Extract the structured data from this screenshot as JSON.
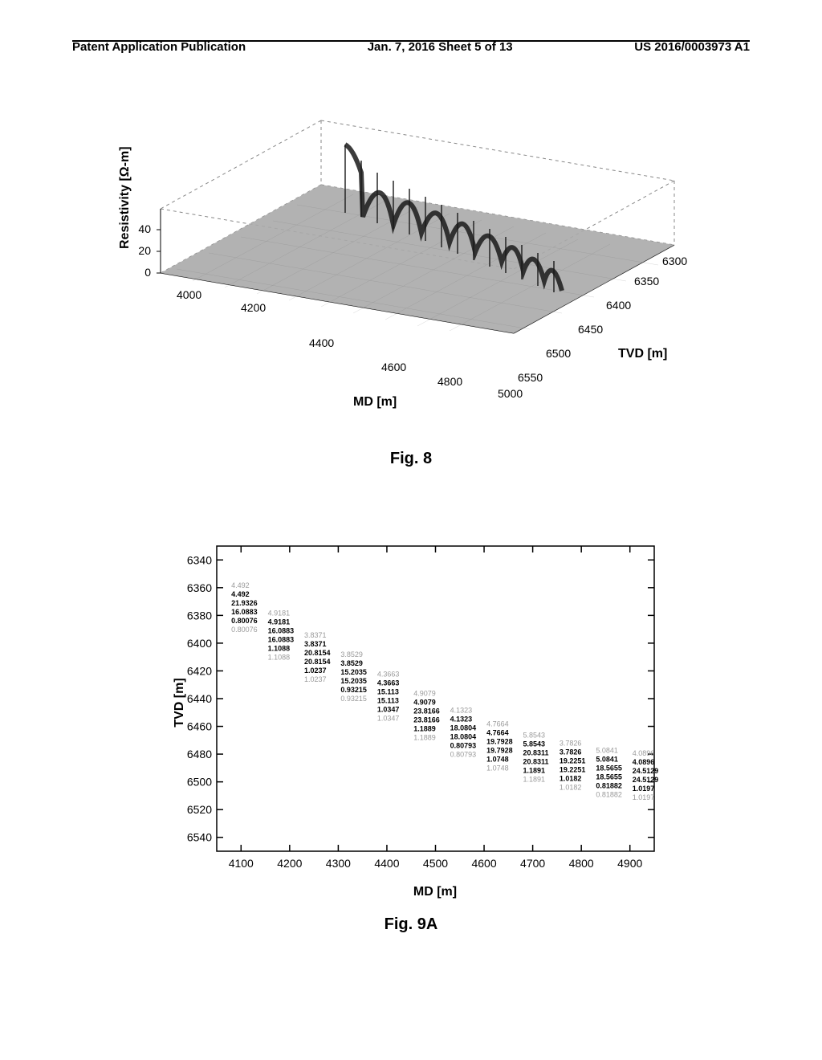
{
  "header": {
    "left": "Patent Application Publication",
    "center": "Jan. 7, 2016  Sheet 5 of 13",
    "right": "US 2016/0003973 A1"
  },
  "fig8": {
    "caption": "Fig. 8",
    "z_label": "Resistivity [Ω-m]",
    "x_label": "MD [m]",
    "y_label": "TVD [m]",
    "z_ticks": [
      0,
      20,
      40
    ],
    "x_ticks": [
      4000,
      4200,
      4400,
      4600,
      4800,
      5000
    ],
    "y_ticks": [
      6300,
      6350,
      6400,
      6450,
      6500,
      6550
    ],
    "surface_color": "#999999",
    "ridge_color": "#1a1a1a",
    "grid_color": "#888888",
    "background": "#ffffff"
  },
  "fig9a": {
    "caption": "Fig. 9A",
    "y_label": "TVD [m]",
    "x_label": "MD [m]",
    "y_ticks": [
      6340,
      6360,
      6380,
      6400,
      6420,
      6440,
      6460,
      6480,
      6500,
      6520,
      6540
    ],
    "x_ticks": [
      4100,
      4200,
      4300,
      4400,
      4500,
      4600,
      4700,
      4800,
      4900
    ],
    "background": "#ffffff",
    "text_color": "#000000",
    "gray_color": "#9a9a9a",
    "data_points": [
      {
        "x": 4080,
        "y": 6360,
        "vals": [
          {
            "t": "4.492",
            "g": true
          },
          {
            "t": "4.492"
          },
          {
            "t": "21.9326"
          },
          {
            "t": "16.0883"
          },
          {
            "t": "0.80076"
          },
          {
            "t": "0.80076",
            "g": true
          }
        ]
      },
      {
        "x": 4155,
        "y": 6380,
        "vals": [
          {
            "t": "4.9181",
            "g": true
          },
          {
            "t": "4.9181"
          },
          {
            "t": "16.0883"
          },
          {
            "t": "16.0883"
          },
          {
            "t": "1.1088"
          },
          {
            "t": "1.1088",
            "g": true
          }
        ]
      },
      {
        "x": 4230,
        "y": 6396,
        "vals": [
          {
            "t": "3.8371",
            "g": true
          },
          {
            "t": "3.8371"
          },
          {
            "t": "20.8154"
          },
          {
            "t": "20.8154"
          },
          {
            "t": "1.0237"
          },
          {
            "t": "1.0237",
            "g": true
          }
        ]
      },
      {
        "x": 4305,
        "y": 6410,
        "vals": [
          {
            "t": "3.8529",
            "g": true
          },
          {
            "t": "3.8529"
          },
          {
            "t": "15.2035"
          },
          {
            "t": "15.2035"
          },
          {
            "t": "0.93215"
          },
          {
            "t": "0.93215",
            "g": true
          }
        ]
      },
      {
        "x": 4380,
        "y": 6424,
        "vals": [
          {
            "t": "4.3663",
            "g": true
          },
          {
            "t": "4.3663"
          },
          {
            "t": "15.113"
          },
          {
            "t": "15.113"
          },
          {
            "t": "1.0347"
          },
          {
            "t": "1.0347",
            "g": true
          }
        ]
      },
      {
        "x": 4455,
        "y": 6438,
        "vals": [
          {
            "t": "4.9079",
            "g": true
          },
          {
            "t": "4.9079"
          },
          {
            "t": "23.8166"
          },
          {
            "t": "23.8166"
          },
          {
            "t": "1.1889"
          },
          {
            "t": "1.1889",
            "g": true
          }
        ]
      },
      {
        "x": 4530,
        "y": 6450,
        "vals": [
          {
            "t": "4.1323",
            "g": true
          },
          {
            "t": "4.1323"
          },
          {
            "t": "18.0804"
          },
          {
            "t": "18.0804"
          },
          {
            "t": "0.80793"
          },
          {
            "t": "0.80793",
            "g": true
          }
        ]
      },
      {
        "x": 4605,
        "y": 6460,
        "vals": [
          {
            "t": "4.7664",
            "g": true
          },
          {
            "t": "4.7664"
          },
          {
            "t": "19.7928"
          },
          {
            "t": "19.7928"
          },
          {
            "t": "1.0748"
          },
          {
            "t": "1.0748",
            "g": true
          }
        ]
      },
      {
        "x": 4680,
        "y": 6468,
        "vals": [
          {
            "t": "5.8543",
            "g": true
          },
          {
            "t": "5.8543"
          },
          {
            "t": "20.8311"
          },
          {
            "t": "20.8311"
          },
          {
            "t": "1.1891"
          },
          {
            "t": "1.1891",
            "g": true
          }
        ]
      },
      {
        "x": 4755,
        "y": 6474,
        "vals": [
          {
            "t": "3.7826",
            "g": true
          },
          {
            "t": "3.7826"
          },
          {
            "t": "19.2251"
          },
          {
            "t": "19.2251"
          },
          {
            "t": "1.0182"
          },
          {
            "t": "1.0182",
            "g": true
          }
        ]
      },
      {
        "x": 4830,
        "y": 6479,
        "vals": [
          {
            "t": "5.0841",
            "g": true
          },
          {
            "t": "5.0841"
          },
          {
            "t": "18.5655"
          },
          {
            "t": "18.5655"
          },
          {
            "t": "0.81882"
          },
          {
            "t": "0.81882",
            "g": true
          }
        ]
      },
      {
        "x": 4905,
        "y": 6481,
        "vals": [
          {
            "t": "4.0896",
            "g": true
          },
          {
            "t": "4.0896"
          },
          {
            "t": "24.5129"
          },
          {
            "t": "24.5129"
          },
          {
            "t": "1.0197"
          },
          {
            "t": "1.0197",
            "g": true
          }
        ]
      }
    ]
  }
}
